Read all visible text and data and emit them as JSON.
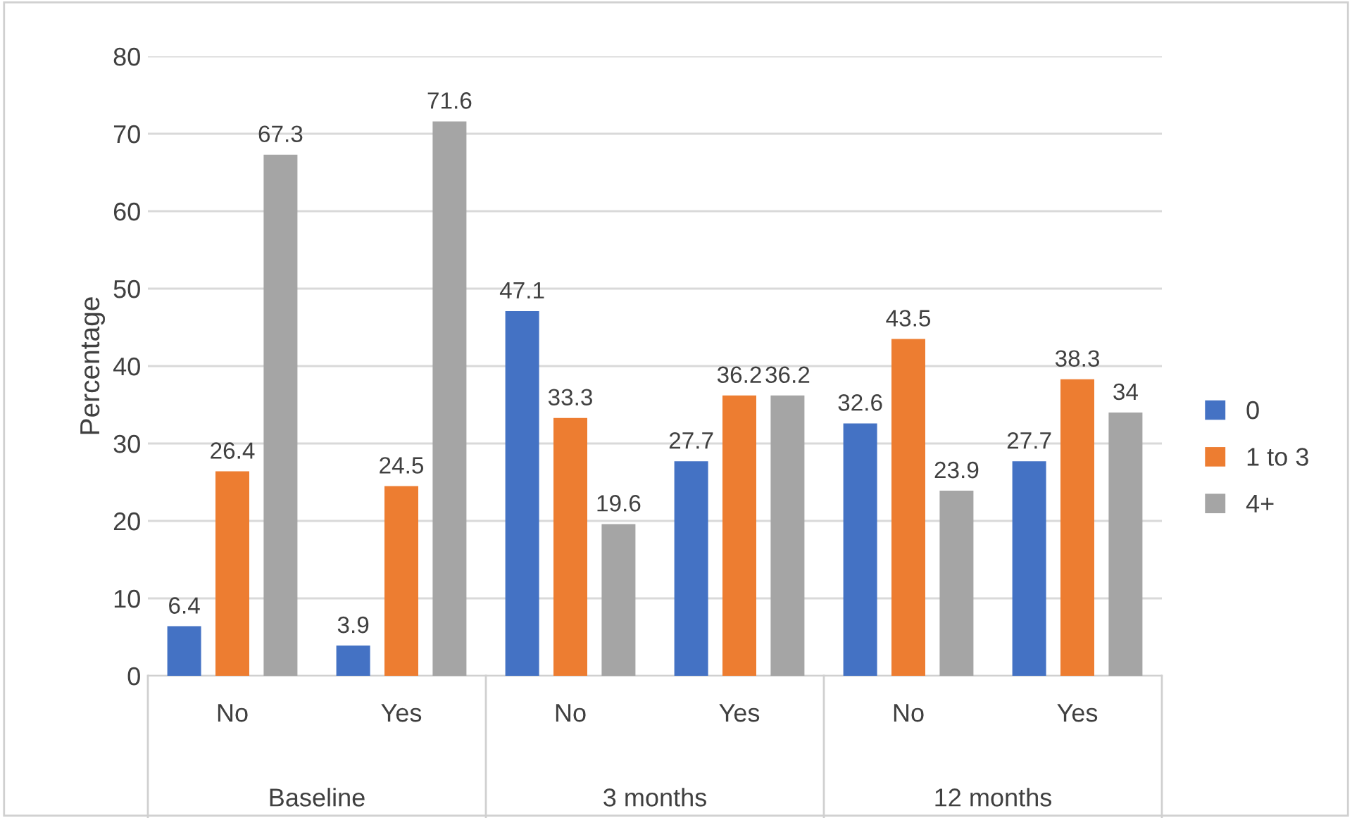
{
  "chart_data": {
    "type": "bar",
    "ylabel": "Percentage",
    "categories": [
      "No",
      "Yes",
      "No",
      "Yes",
      "No",
      "Yes"
    ],
    "annotations": [
      "Baseline",
      "3 months",
      "12 months"
    ],
    "series": [
      {
        "name": "0",
        "color": "#4472c4",
        "values": [
          6.4,
          3.9,
          47.1,
          27.7,
          32.6,
          27.7
        ]
      },
      {
        "name": "1 to 3",
        "color": "#ed7d31",
        "values": [
          26.4,
          24.5,
          33.3,
          36.2,
          43.5,
          38.3
        ]
      },
      {
        "name": "4+",
        "color": "#a5a5a5",
        "values": [
          67.3,
          71.6,
          19.6,
          36.2,
          23.9,
          34
        ]
      }
    ],
    "ylim": [
      0,
      80
    ],
    "yticks": [
      0,
      10,
      20,
      30,
      40,
      50,
      60,
      70,
      80
    ],
    "grid": "y",
    "legend": "right",
    "data_labels": true
  }
}
